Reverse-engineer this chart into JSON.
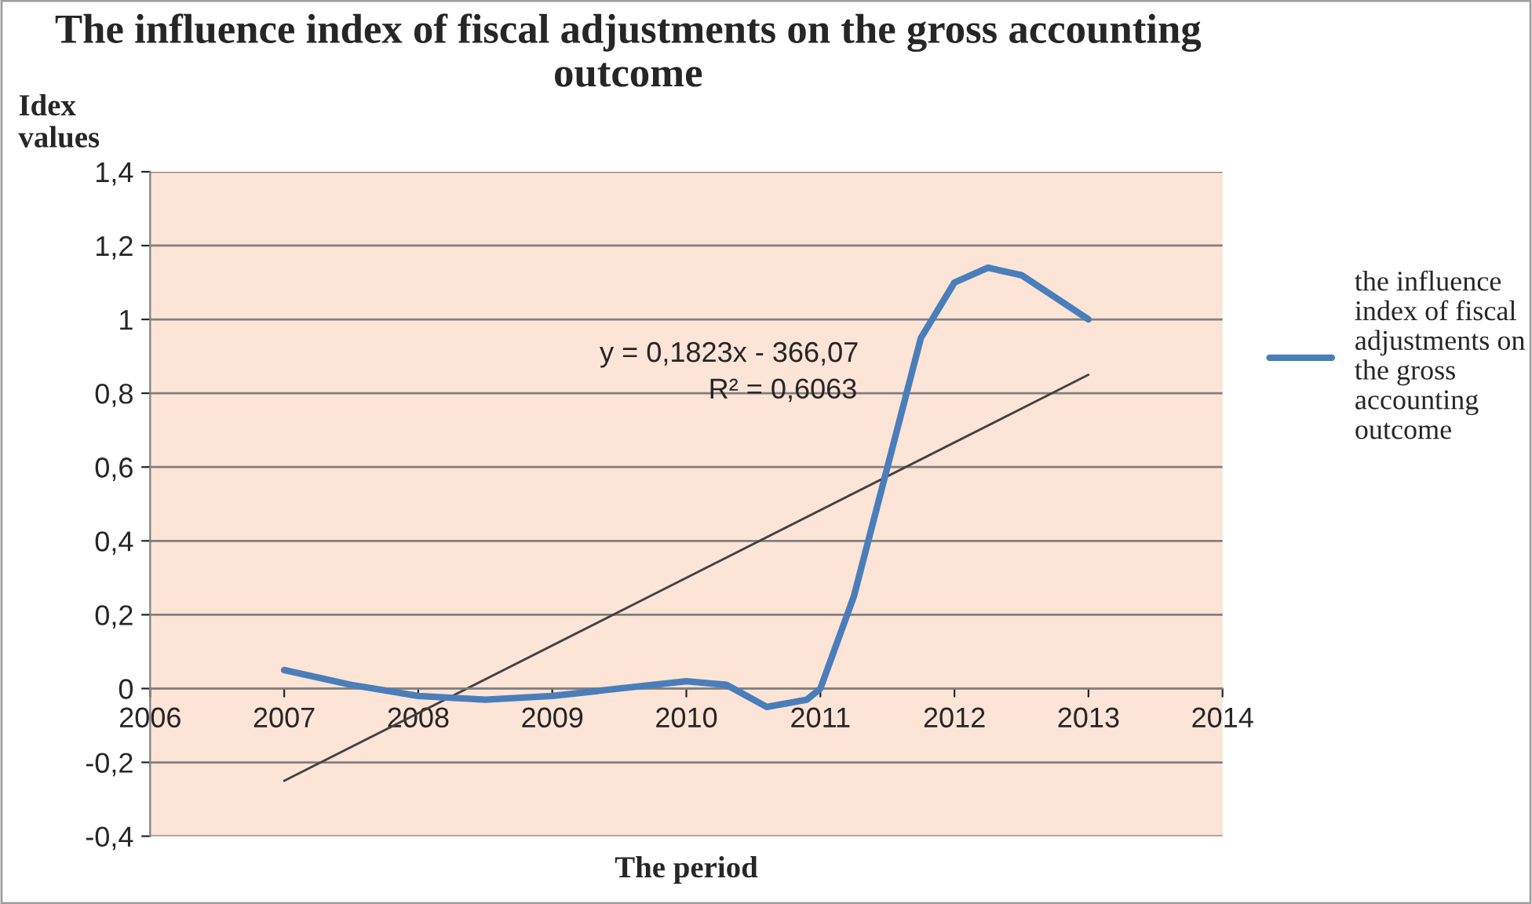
{
  "chart_data": {
    "type": "line",
    "title": "The influence index of fiscal adjustments on the gross accounting outcome",
    "xlabel": "The period",
    "ylabel": "Idex values",
    "series": [
      {
        "name": "the influence index of fiscal adjustments on the gross accounting outcome",
        "color": "#4a7ebb",
        "x": [
          2007,
          2007.5,
          2008,
          2008.5,
          2009,
          2009.5,
          2010,
          2010.3,
          2010.6,
          2010.9,
          2011,
          2011.25,
          2011.5,
          2011.75,
          2012,
          2012.25,
          2012.5,
          2012.75,
          2013
        ],
        "values": [
          0.05,
          0.01,
          -0.02,
          -0.03,
          -0.02,
          0.0,
          0.02,
          0.01,
          -0.05,
          -0.03,
          0.0,
          0.25,
          0.6,
          0.95,
          1.1,
          1.14,
          1.12,
          1.06,
          1.0
        ]
      },
      {
        "type": "line",
        "color": "#404040",
        "x": [
          2007,
          2013
        ],
        "values": [
          -0.25,
          0.85
        ]
      }
    ],
    "annotations": [
      "y = 0,1823x - 366,07",
      "R² = 0,6063"
    ],
    "xlim": [
      2006,
      2014
    ],
    "xticks": [
      2006,
      2007,
      2008,
      2009,
      2010,
      2011,
      2012,
      2013,
      2014
    ],
    "ylim": [
      -0.4,
      1.4
    ],
    "yticks": [
      {
        "value": -0.4,
        "label": "-0,4"
      },
      {
        "value": -0.2,
        "label": "-0,2"
      },
      0,
      {
        "value": 0.2,
        "label": "0,2"
      },
      {
        "value": 0.4,
        "label": "0,4"
      },
      {
        "value": 0.6,
        "label": "0,6"
      },
      {
        "value": 0.8,
        "label": "0,8"
      },
      1,
      {
        "value": 1.2,
        "label": "1,2"
      },
      {
        "value": 1.4,
        "label": "1,4"
      }
    ],
    "grid": "y",
    "legend": "right",
    "line_style": "solid",
    "marker": "none"
  }
}
